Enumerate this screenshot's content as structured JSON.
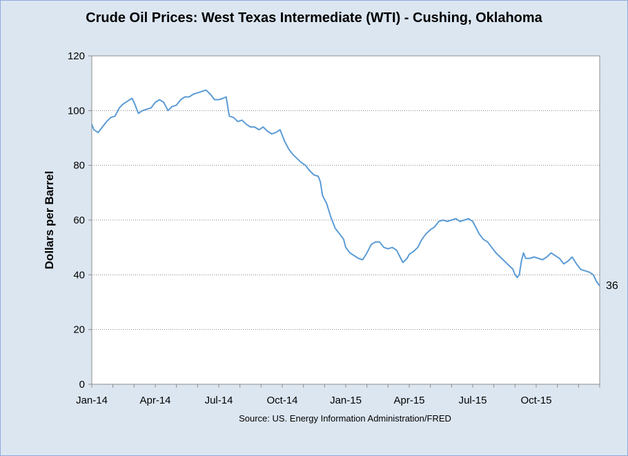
{
  "chart_data": {
    "type": "line",
    "title": "Crude Oil Prices: West Texas Intermediate (WTI) - Cushing, Oklahoma",
    "ylabel": "Dollars per Barrel",
    "xlabel": "",
    "source": "Source: US. Energy Information  Administration/FRED",
    "ylim": [
      0,
      120
    ],
    "yticks": [
      "0",
      "20",
      "40",
      "60",
      "80",
      "100",
      "120"
    ],
    "xticks": [
      {
        "label": "Jan-14",
        "t": 0
      },
      {
        "label": "Apr-14",
        "t": 3
      },
      {
        "label": "Jul-14",
        "t": 6
      },
      {
        "label": "Oct-14",
        "t": 9
      },
      {
        "label": "Jan-15",
        "t": 12
      },
      {
        "label": "Apr-15",
        "t": 15
      },
      {
        "label": "Jul-15",
        "t": 18
      },
      {
        "label": "Oct-15",
        "t": 21
      }
    ],
    "xlim": [
      0,
      24
    ],
    "grid": "horizontal dotted",
    "end_label": "36",
    "series": [
      {
        "color": "#5b9bd5",
        "points": [
          [
            0.0,
            95
          ],
          [
            0.1,
            93
          ],
          [
            0.3,
            92
          ],
          [
            0.5,
            94
          ],
          [
            0.7,
            96
          ],
          [
            0.9,
            97.5
          ],
          [
            1.1,
            98
          ],
          [
            1.3,
            101
          ],
          [
            1.5,
            102.5
          ],
          [
            1.7,
            103.5
          ],
          [
            1.9,
            104.5
          ],
          [
            2.0,
            103
          ],
          [
            2.2,
            99
          ],
          [
            2.4,
            100
          ],
          [
            2.6,
            100.5
          ],
          [
            2.8,
            101
          ],
          [
            3.0,
            103
          ],
          [
            3.2,
            104
          ],
          [
            3.4,
            103
          ],
          [
            3.6,
            100
          ],
          [
            3.8,
            101.5
          ],
          [
            4.0,
            102
          ],
          [
            4.2,
            104
          ],
          [
            4.4,
            105
          ],
          [
            4.6,
            105
          ],
          [
            4.8,
            106
          ],
          [
            5.0,
            106.5
          ],
          [
            5.2,
            107
          ],
          [
            5.4,
            107.5
          ],
          [
            5.6,
            106
          ],
          [
            5.8,
            104
          ],
          [
            6.0,
            104
          ],
          [
            6.2,
            104.5
          ],
          [
            6.35,
            105
          ],
          [
            6.5,
            98
          ],
          [
            6.7,
            97.5
          ],
          [
            6.9,
            96
          ],
          [
            7.1,
            96.5
          ],
          [
            7.3,
            95
          ],
          [
            7.5,
            94
          ],
          [
            7.7,
            94
          ],
          [
            7.9,
            93
          ],
          [
            8.1,
            94
          ],
          [
            8.3,
            92.5
          ],
          [
            8.5,
            91.5
          ],
          [
            8.7,
            92
          ],
          [
            8.9,
            93
          ],
          [
            9.0,
            91
          ],
          [
            9.1,
            89
          ],
          [
            9.3,
            86
          ],
          [
            9.5,
            84
          ],
          [
            9.7,
            82.5
          ],
          [
            9.9,
            81
          ],
          [
            10.1,
            80
          ],
          [
            10.3,
            78
          ],
          [
            10.5,
            76.5
          ],
          [
            10.7,
            76
          ],
          [
            10.8,
            74
          ],
          [
            10.9,
            69
          ],
          [
            11.1,
            66
          ],
          [
            11.3,
            61
          ],
          [
            11.5,
            57
          ],
          [
            11.7,
            55
          ],
          [
            11.9,
            53
          ],
          [
            12.0,
            50
          ],
          [
            12.2,
            48
          ],
          [
            12.4,
            47
          ],
          [
            12.6,
            46
          ],
          [
            12.8,
            45.5
          ],
          [
            13.0,
            48
          ],
          [
            13.2,
            51
          ],
          [
            13.4,
            52
          ],
          [
            13.6,
            52
          ],
          [
            13.8,
            50
          ],
          [
            14.0,
            49.5
          ],
          [
            14.2,
            50
          ],
          [
            14.4,
            49
          ],
          [
            14.6,
            46
          ],
          [
            14.7,
            44.5
          ],
          [
            14.9,
            46
          ],
          [
            15.0,
            47.5
          ],
          [
            15.2,
            48.5
          ],
          [
            15.4,
            50
          ],
          [
            15.6,
            53
          ],
          [
            15.8,
            55
          ],
          [
            16.0,
            56.5
          ],
          [
            16.2,
            57.5
          ],
          [
            16.4,
            59.5
          ],
          [
            16.6,
            60
          ],
          [
            16.8,
            59.5
          ],
          [
            17.0,
            60
          ],
          [
            17.2,
            60.5
          ],
          [
            17.4,
            59.5
          ],
          [
            17.6,
            60
          ],
          [
            17.8,
            60.5
          ],
          [
            18.0,
            59.5
          ],
          [
            18.1,
            58
          ],
          [
            18.3,
            55
          ],
          [
            18.5,
            53
          ],
          [
            18.7,
            52
          ],
          [
            18.9,
            50
          ],
          [
            19.1,
            48
          ],
          [
            19.3,
            46.5
          ],
          [
            19.5,
            45
          ],
          [
            19.7,
            43.5
          ],
          [
            19.9,
            42
          ],
          [
            20.0,
            40
          ],
          [
            20.1,
            39
          ],
          [
            20.2,
            40
          ],
          [
            20.3,
            45
          ],
          [
            20.4,
            48
          ],
          [
            20.5,
            46
          ],
          [
            20.7,
            46
          ],
          [
            20.9,
            46.5
          ],
          [
            21.1,
            46
          ],
          [
            21.3,
            45.5
          ],
          [
            21.5,
            46.5
          ],
          [
            21.7,
            48
          ],
          [
            21.9,
            47
          ],
          [
            22.1,
            46
          ],
          [
            22.3,
            44
          ],
          [
            22.5,
            45
          ],
          [
            22.7,
            46.5
          ],
          [
            22.9,
            44
          ],
          [
            23.1,
            42
          ],
          [
            23.3,
            41.5
          ],
          [
            23.5,
            41
          ],
          [
            23.7,
            40
          ],
          [
            23.85,
            37.5
          ],
          [
            24.0,
            36
          ]
        ]
      }
    ]
  }
}
